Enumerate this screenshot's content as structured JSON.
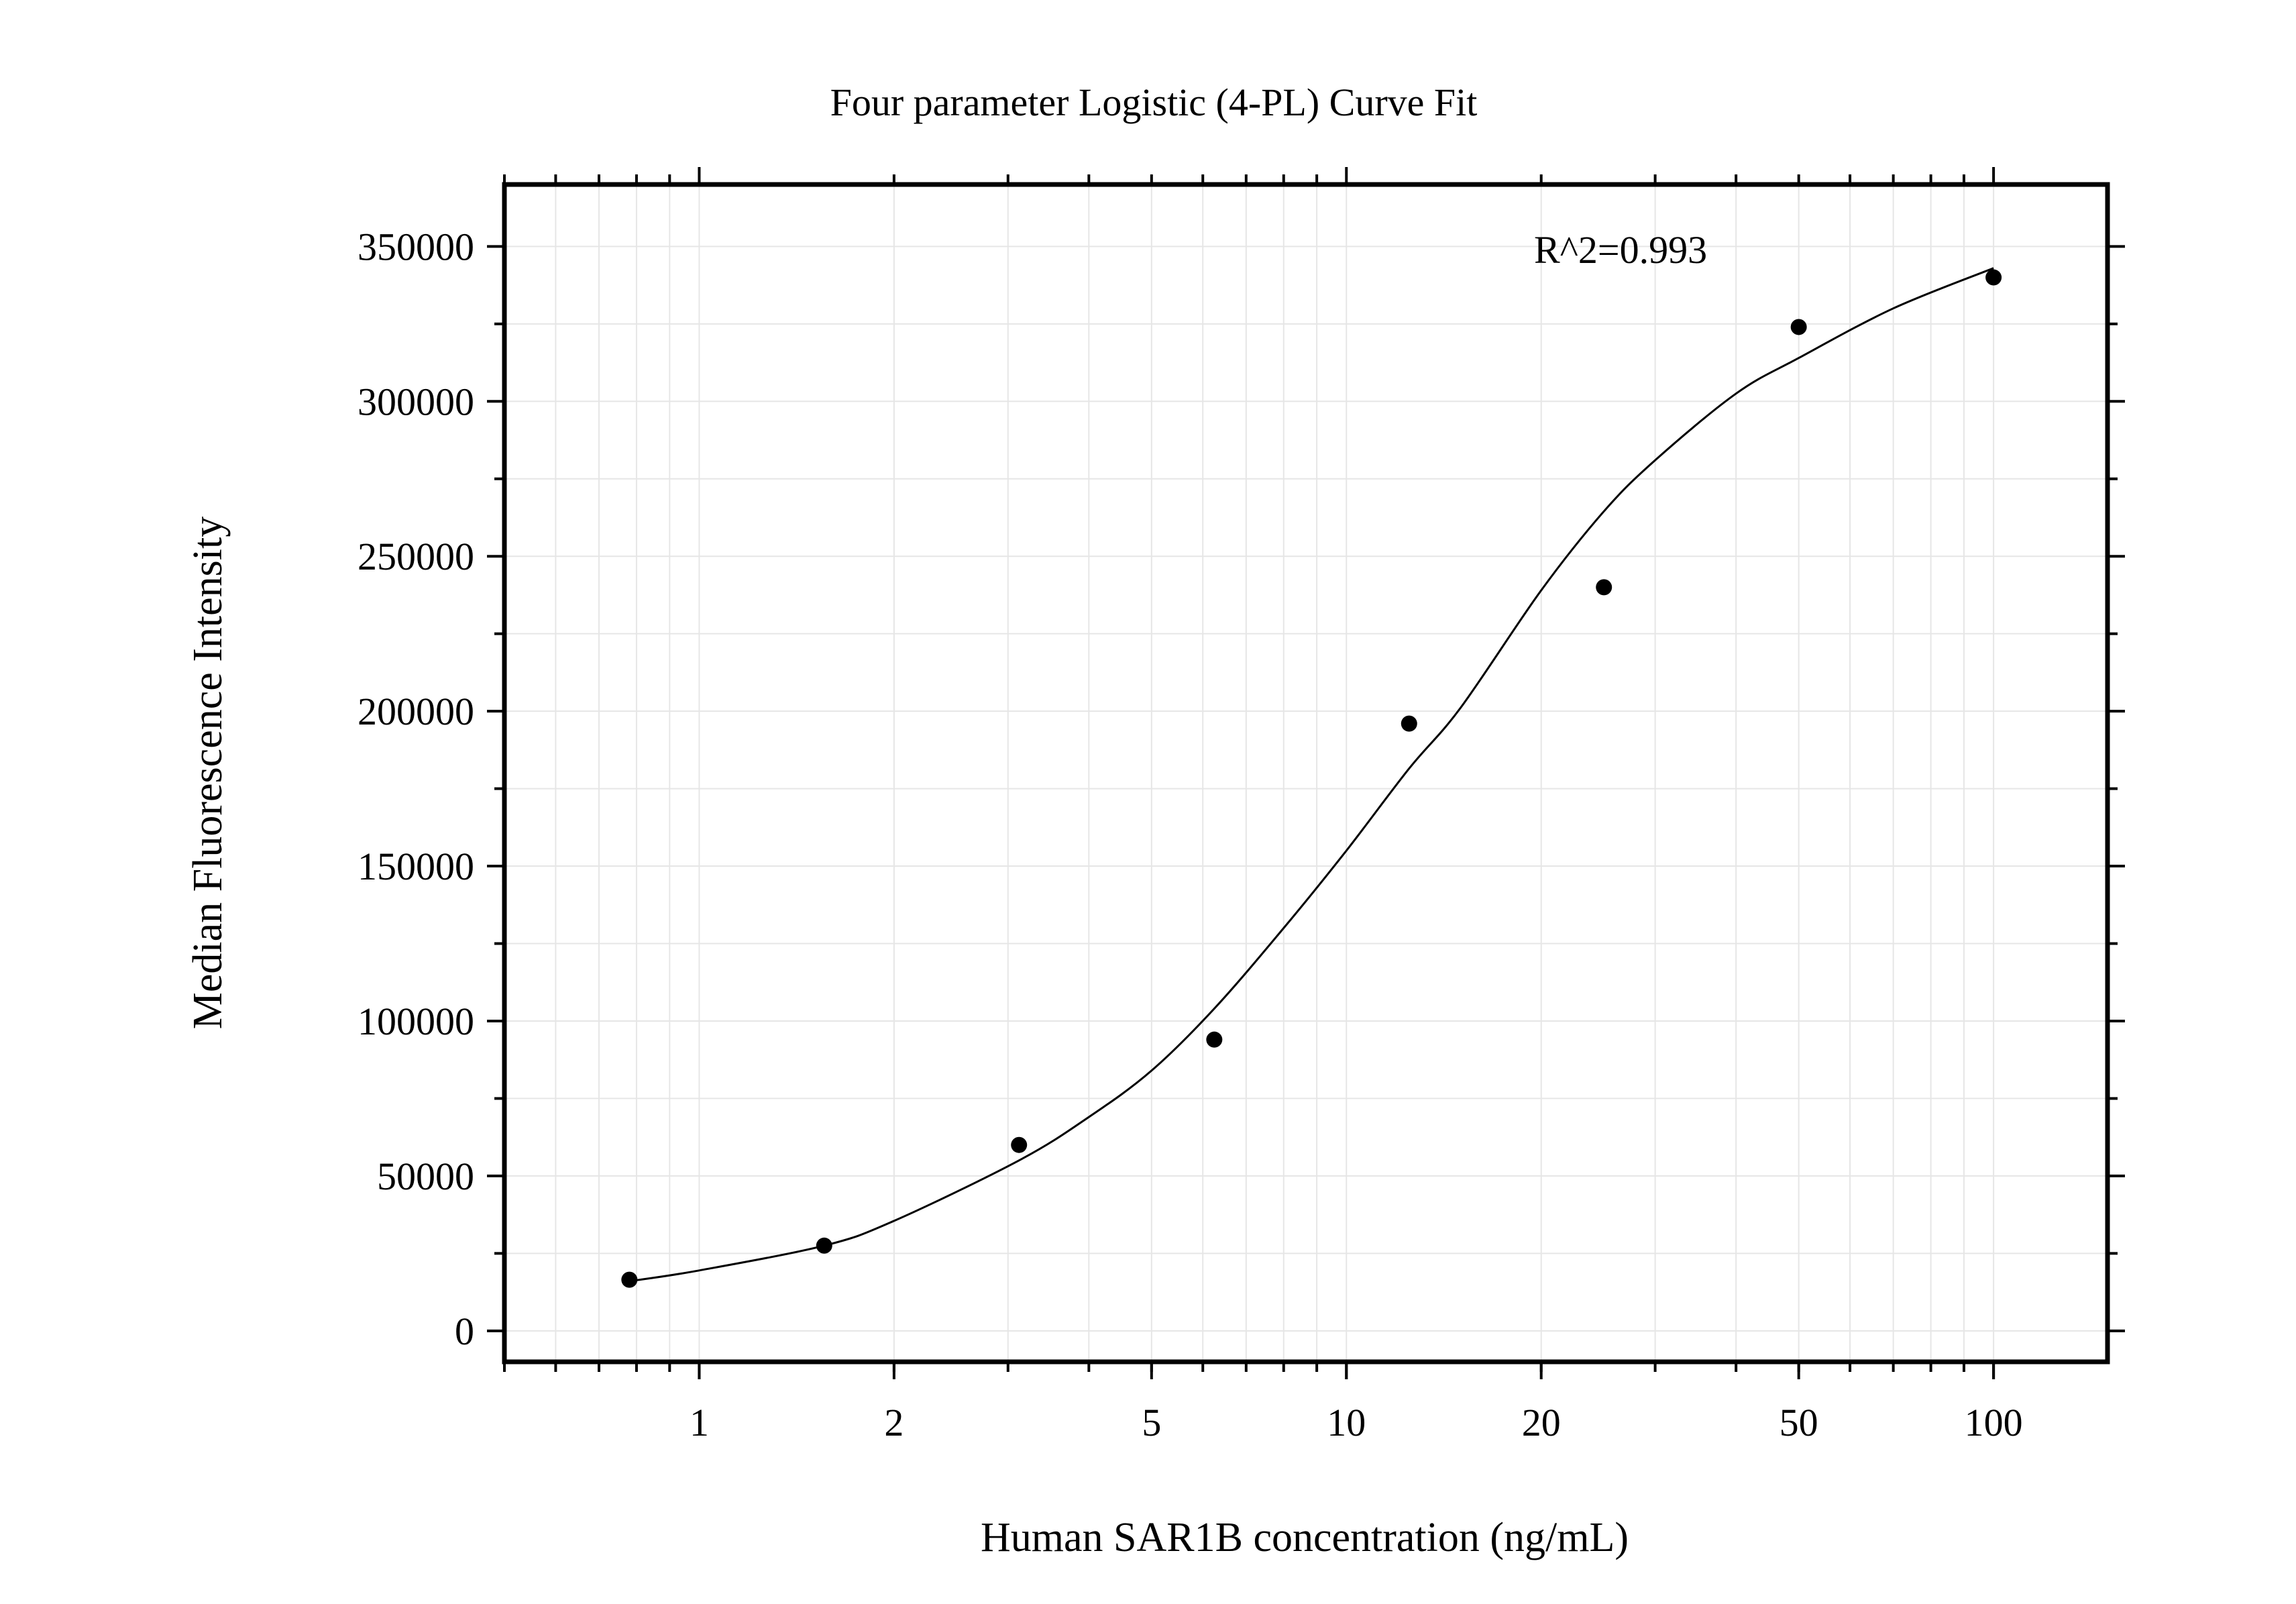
{
  "chart_data": {
    "type": "scatter",
    "title": "Four parameter Logistic (4-PL) Curve Fit",
    "xlabel": "Human SAR1B concentration (ng/mL)",
    "ylabel": "Median Fluorescence Intensity",
    "x_scale": "log",
    "xlim": [
      0.5,
      150
    ],
    "ylim": [
      -10000,
      370000
    ],
    "x_ticks": [
      1,
      2,
      5,
      10,
      20,
      50,
      100
    ],
    "x_tick_labels": [
      "1",
      "2",
      "5",
      "10",
      "20",
      "50",
      "100"
    ],
    "y_ticks": [
      0,
      50000,
      100000,
      150000,
      200000,
      250000,
      300000,
      350000
    ],
    "y_tick_labels": [
      "0",
      "50000",
      "100000",
      "150000",
      "200000",
      "250000",
      "300000",
      "350000"
    ],
    "grid": true,
    "annotation": "R^2=0.993",
    "points": {
      "x": [
        0.78,
        1.56,
        3.12,
        6.25,
        12.5,
        25,
        50,
        100
      ],
      "y": [
        16500,
        27500,
        60000,
        94000,
        196000,
        240000,
        324000,
        340000
      ]
    },
    "fit_curve": {
      "x": [
        0.78,
        1,
        1.56,
        2,
        3.12,
        4,
        5,
        6.25,
        8,
        10,
        12.5,
        15,
        20,
        25,
        30,
        40,
        50,
        70,
        100
      ],
      "y": [
        16000,
        19500,
        27500,
        35500,
        55000,
        69000,
        84000,
        104000,
        130000,
        155000,
        181500,
        201000,
        239000,
        264500,
        281000,
        302500,
        314000,
        330000,
        343000
      ]
    },
    "colors": {
      "points": "#000000",
      "curve": "#000000",
      "grid": "#e6e6e6",
      "frame": "#000000"
    }
  }
}
